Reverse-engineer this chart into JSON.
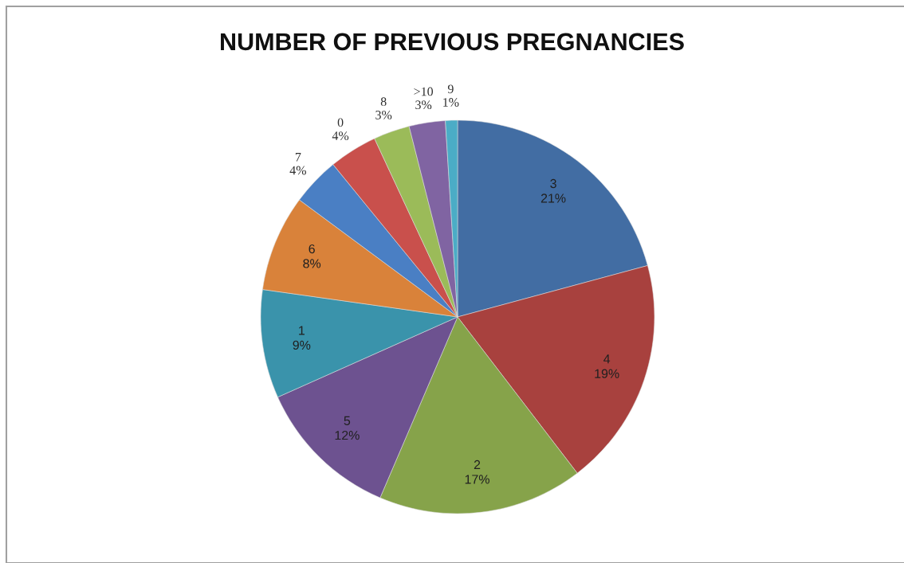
{
  "chart_data": {
    "type": "pie",
    "title": "NUMBER OF PREVIOUS PREGNANCIES",
    "categories": [
      "3",
      "4",
      "2",
      "5",
      "1",
      "6",
      "7",
      "0",
      "8",
      ">10",
      "9"
    ],
    "values": [
      21,
      19,
      17,
      12,
      9,
      8,
      4,
      4,
      3,
      3,
      1
    ],
    "value_labels": [
      "21%",
      "19%",
      "17%",
      "12%",
      "9%",
      "8%",
      "4%",
      "4%",
      "3%",
      "3%",
      "1%"
    ],
    "colors": [
      "#426da3",
      "#a8413e",
      "#86a34a",
      "#6d5290",
      "#3a93ab",
      "#d9823a",
      "#4a7fc4",
      "#c9504c",
      "#9bbb59",
      "#8064a2",
      "#4bacc6"
    ],
    "legend": false
  }
}
